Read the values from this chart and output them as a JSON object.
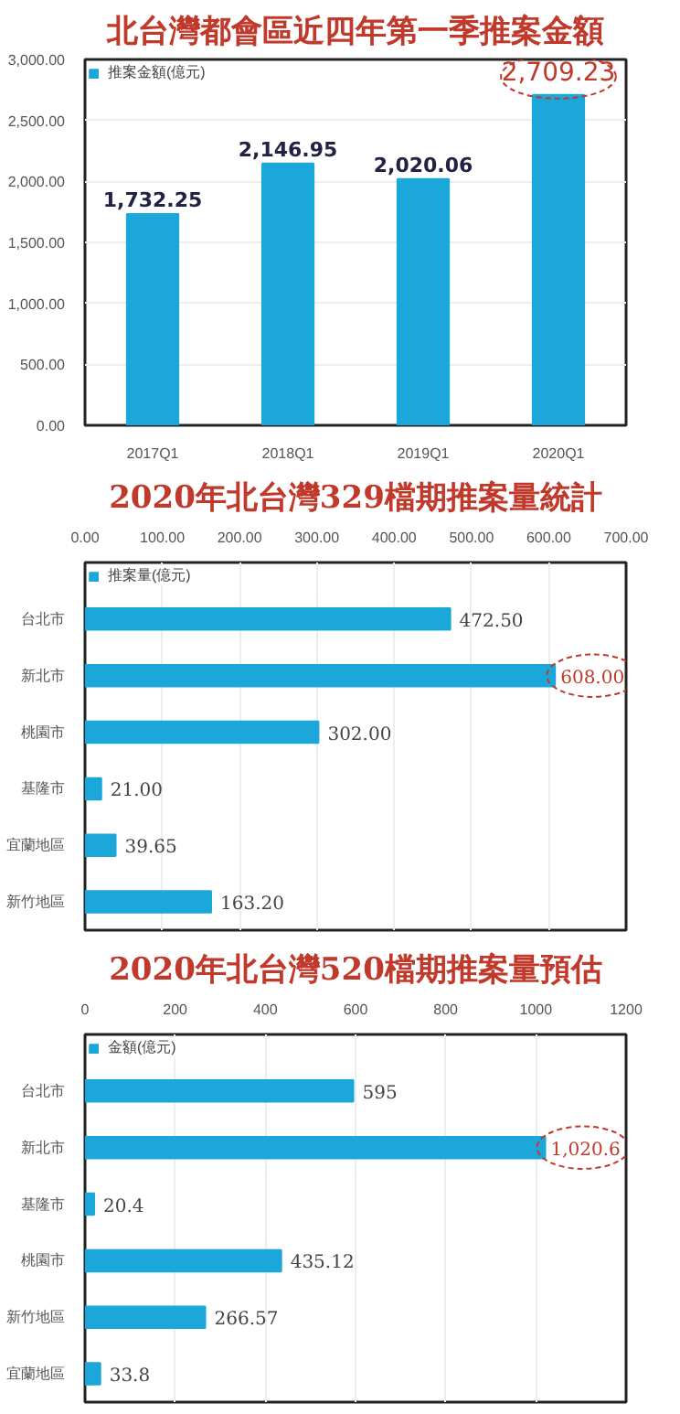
{
  "chart_data": [
    {
      "type": "bar",
      "title": "北台灣都會區近四年第一季推案金額",
      "categories": [
        "2017Q1",
        "2018Q1",
        "2019Q1",
        "2020Q1"
      ],
      "series": [
        {
          "name": "推案金額(億元)",
          "color": "#1ca7da",
          "values": [
            1732.25,
            2146.95,
            2020.06,
            2709.23
          ],
          "value_labels": [
            "1,732.25",
            "2,146.95",
            "2,020.06",
            null
          ]
        }
      ],
      "annotations": [
        {
          "text": "2,709.23",
          "x": "2020Q1",
          "y": 2709.23
        }
      ],
      "ylim": [
        0,
        3000
      ],
      "yticks": [
        {
          "value": 0,
          "label": "0.00"
        },
        {
          "value": 500,
          "label": "500.00"
        },
        {
          "value": 1000,
          "label": "1,000.00"
        },
        {
          "value": 1500,
          "label": "1,500.00"
        },
        {
          "value": 2000,
          "label": "2,000.00"
        },
        {
          "value": 2500,
          "label": "2,500.00"
        },
        {
          "value": 3000,
          "label": "3,000.00"
        }
      ],
      "grid": "y",
      "legend": "top left"
    },
    {
      "type": "bar",
      "orientation": "horizontal",
      "title": "2020年北台灣329檔期推案量統計",
      "categories": [
        "台北市",
        "新北市",
        "桃園市",
        "基隆市",
        "宜蘭地區",
        "新竹地區"
      ],
      "series": [
        {
          "name": "推案量(億元)",
          "color": "#1ca7da",
          "values": [
            472.5,
            608.0,
            302.0,
            21.0,
            39.65,
            163.2
          ],
          "value_labels": [
            "472.50",
            null,
            "302.00",
            "21.00",
            "39.65",
            "163.20"
          ]
        }
      ],
      "annotations": [
        {
          "text": "608.00",
          "x": 608.0,
          "y": "新北市"
        }
      ],
      "xlim": [
        0,
        700
      ],
      "xticks": [
        {
          "value": 0,
          "label": "0.00"
        },
        {
          "value": 100,
          "label": "100.00"
        },
        {
          "value": 200,
          "label": "200.00"
        },
        {
          "value": 300,
          "label": "300.00"
        },
        {
          "value": 400,
          "label": "400.00"
        },
        {
          "value": 500,
          "label": "500.00"
        },
        {
          "value": 600,
          "label": "600.00"
        },
        {
          "value": 700,
          "label": "700.00"
        }
      ],
      "grid": "x",
      "legend": "top left"
    },
    {
      "type": "bar",
      "orientation": "horizontal",
      "title": "2020年北台灣520檔期推案量預估",
      "categories": [
        "台北市",
        "新北市",
        "基隆市",
        "桃園市",
        "新竹地區",
        "宜蘭地區"
      ],
      "series": [
        {
          "name": "金額(億元)",
          "color": "#1ca7da",
          "values": [
            595,
            1020.6,
            20.4,
            435.12,
            266.57,
            33.8
          ],
          "value_labels": [
            "595",
            null,
            "20.4",
            "435.12",
            "266.57",
            "33.8"
          ]
        }
      ],
      "annotations": [
        {
          "text": "1,020.6",
          "x": 1020.6,
          "y": "新北市"
        }
      ],
      "xlim": [
        0,
        1200
      ],
      "xticks": [
        0,
        200,
        400,
        600,
        800,
        1000,
        1200
      ],
      "grid": "x",
      "legend": "top left"
    }
  ]
}
